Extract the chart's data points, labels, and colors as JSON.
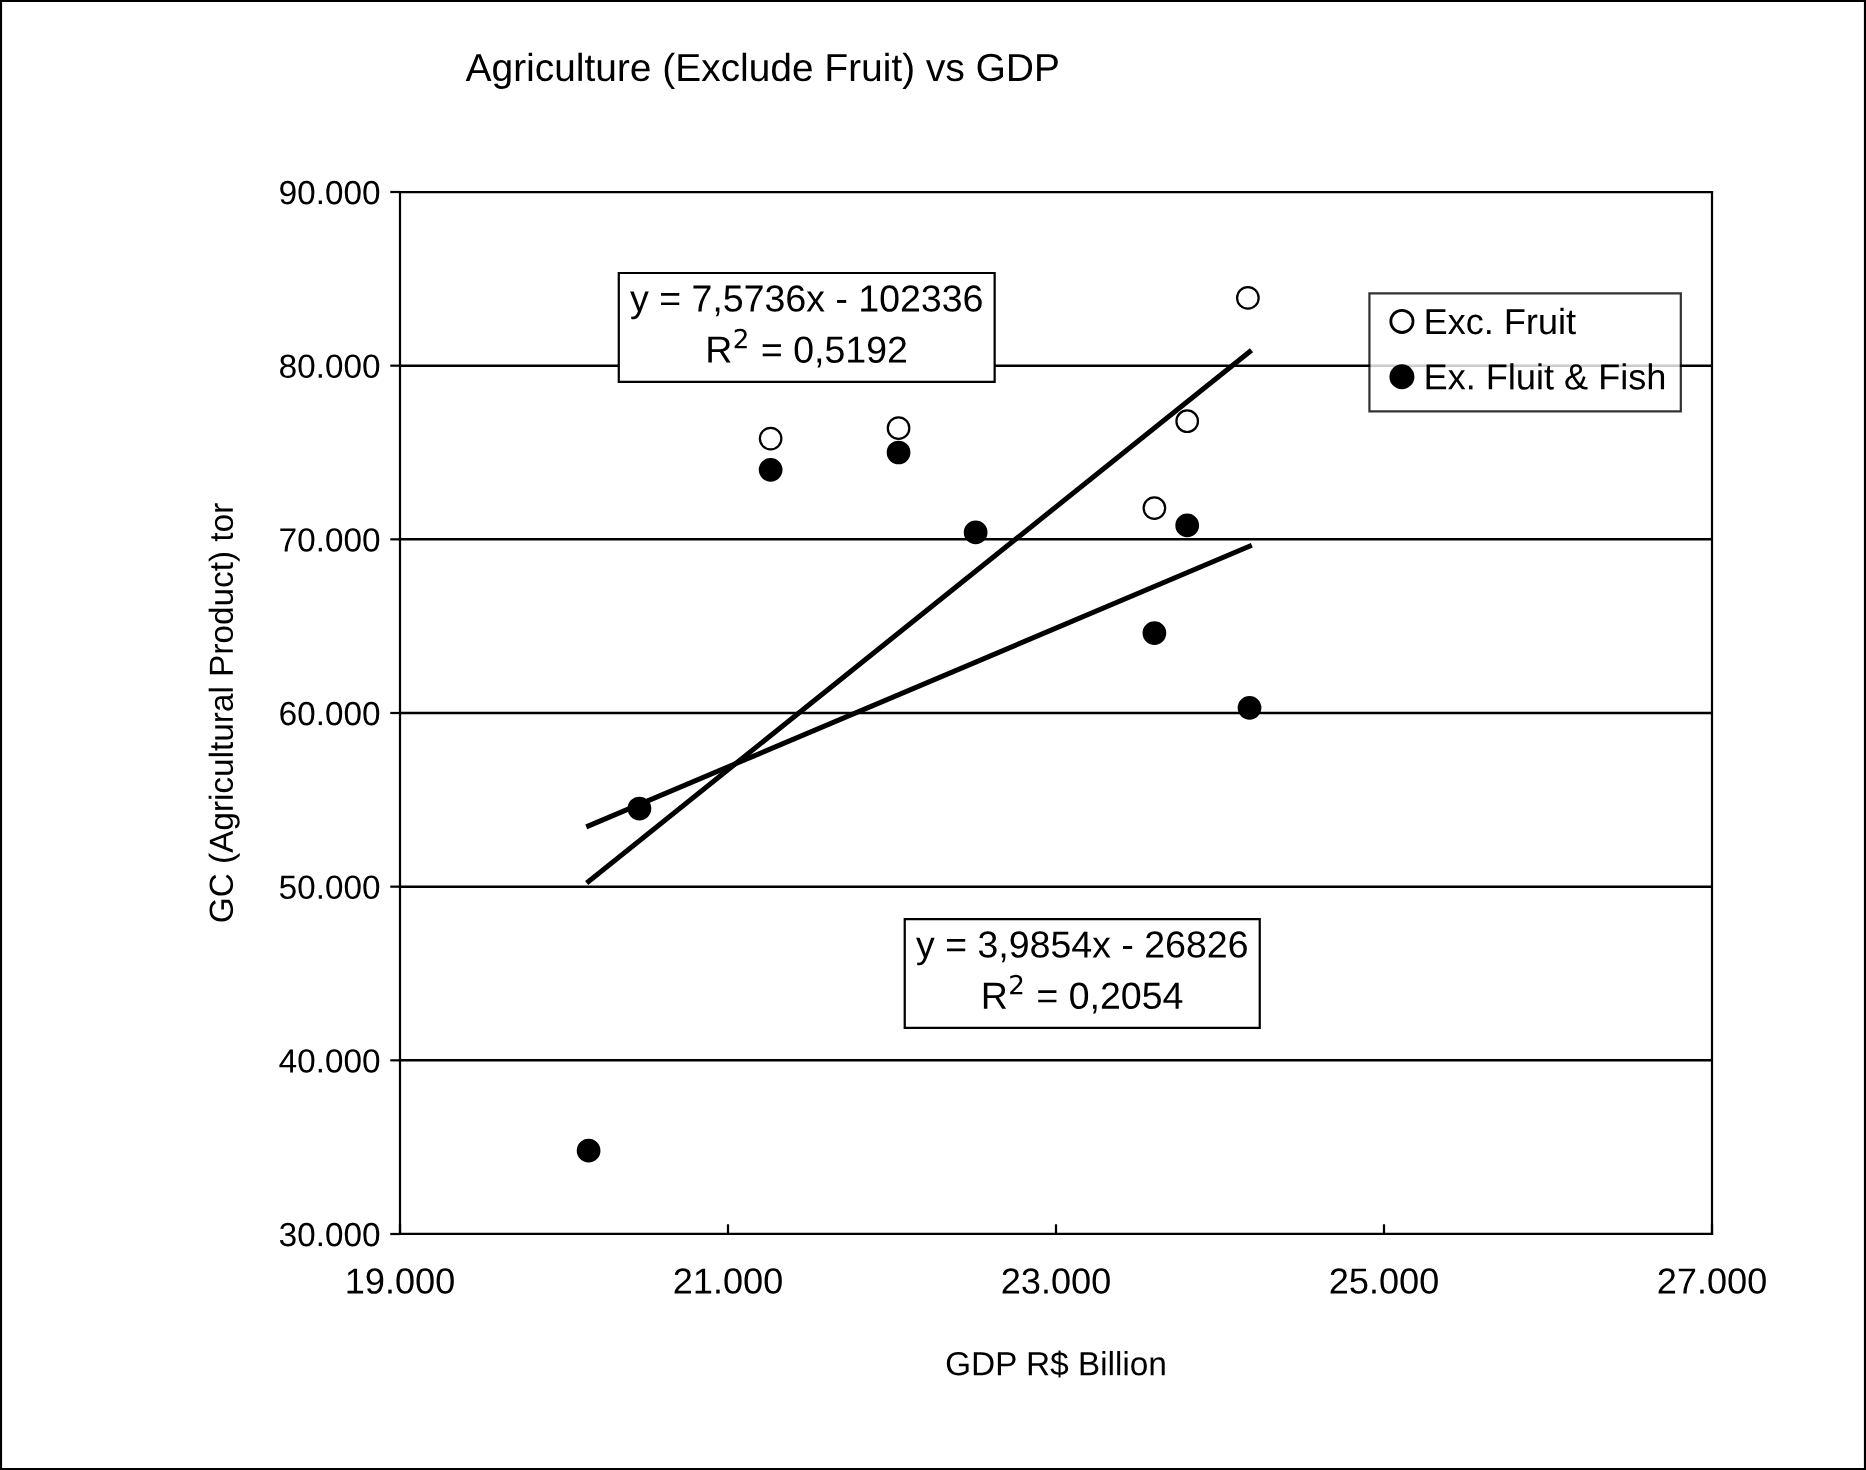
{
  "chart_data": {
    "type": "scatter",
    "title": "Agriculture (Exclude Fruit) vs GDP",
    "xlabel": "GDP R$ Billion",
    "ylabel": "GC (Agricultural Product) tor",
    "series": [
      {
        "name": "Exc. Fruit",
        "color": "#ffffff",
        "x": [
          21260,
          22040,
          23600,
          23800,
          24170
        ],
        "values": [
          75800,
          76400,
          71800,
          76800,
          83900
        ]
      },
      {
        "name": "Ex. Fluit & Fish",
        "color": "#000000",
        "x": [
          20150,
          20460,
          21260,
          22040,
          22510,
          23600,
          23800,
          24180
        ],
        "values": [
          34800,
          54500,
          74000,
          75000,
          70400,
          64600,
          70800,
          60300
        ]
      },
      {
        "type": "line",
        "marker": "none",
        "color": "#000000",
        "x": [
          20150,
          24180
        ],
        "values": [
          50300,
          80800
        ]
      },
      {
        "type": "line",
        "marker": "none",
        "color": "#000000",
        "x": [
          20150,
          24180
        ],
        "values": [
          53500,
          69600
        ]
      }
    ],
    "annotations": [
      "y = 7,5736x - 102336\nR$^{2}$ = 0,5192",
      "y = 3,9854x - 26826\nR$^{2}$ = 0,2054"
    ],
    "xlim": [
      19000,
      27000
    ],
    "xticks": [
      {
        "value": 19000,
        "label": "19.000"
      },
      {
        "value": 21000,
        "label": "21.000"
      },
      {
        "value": 23000,
        "label": "23.000"
      },
      {
        "value": 25000,
        "label": "25.000"
      },
      {
        "value": 27000,
        "label": "27.000"
      }
    ],
    "ylim": [
      30000,
      90000
    ],
    "yticks": [
      {
        "value": 30000,
        "label": "30.000"
      },
      {
        "value": 40000,
        "label": "40.000"
      },
      {
        "value": 50000,
        "label": "50.000"
      },
      {
        "value": 60000,
        "label": "60.000"
      },
      {
        "value": 70000,
        "label": "70.000"
      },
      {
        "value": 80000,
        "label": "80.000"
      },
      {
        "value": 90000,
        "label": "90.000"
      }
    ],
    "grid": "y",
    "legend": "top right",
    "marker": "circle"
  }
}
